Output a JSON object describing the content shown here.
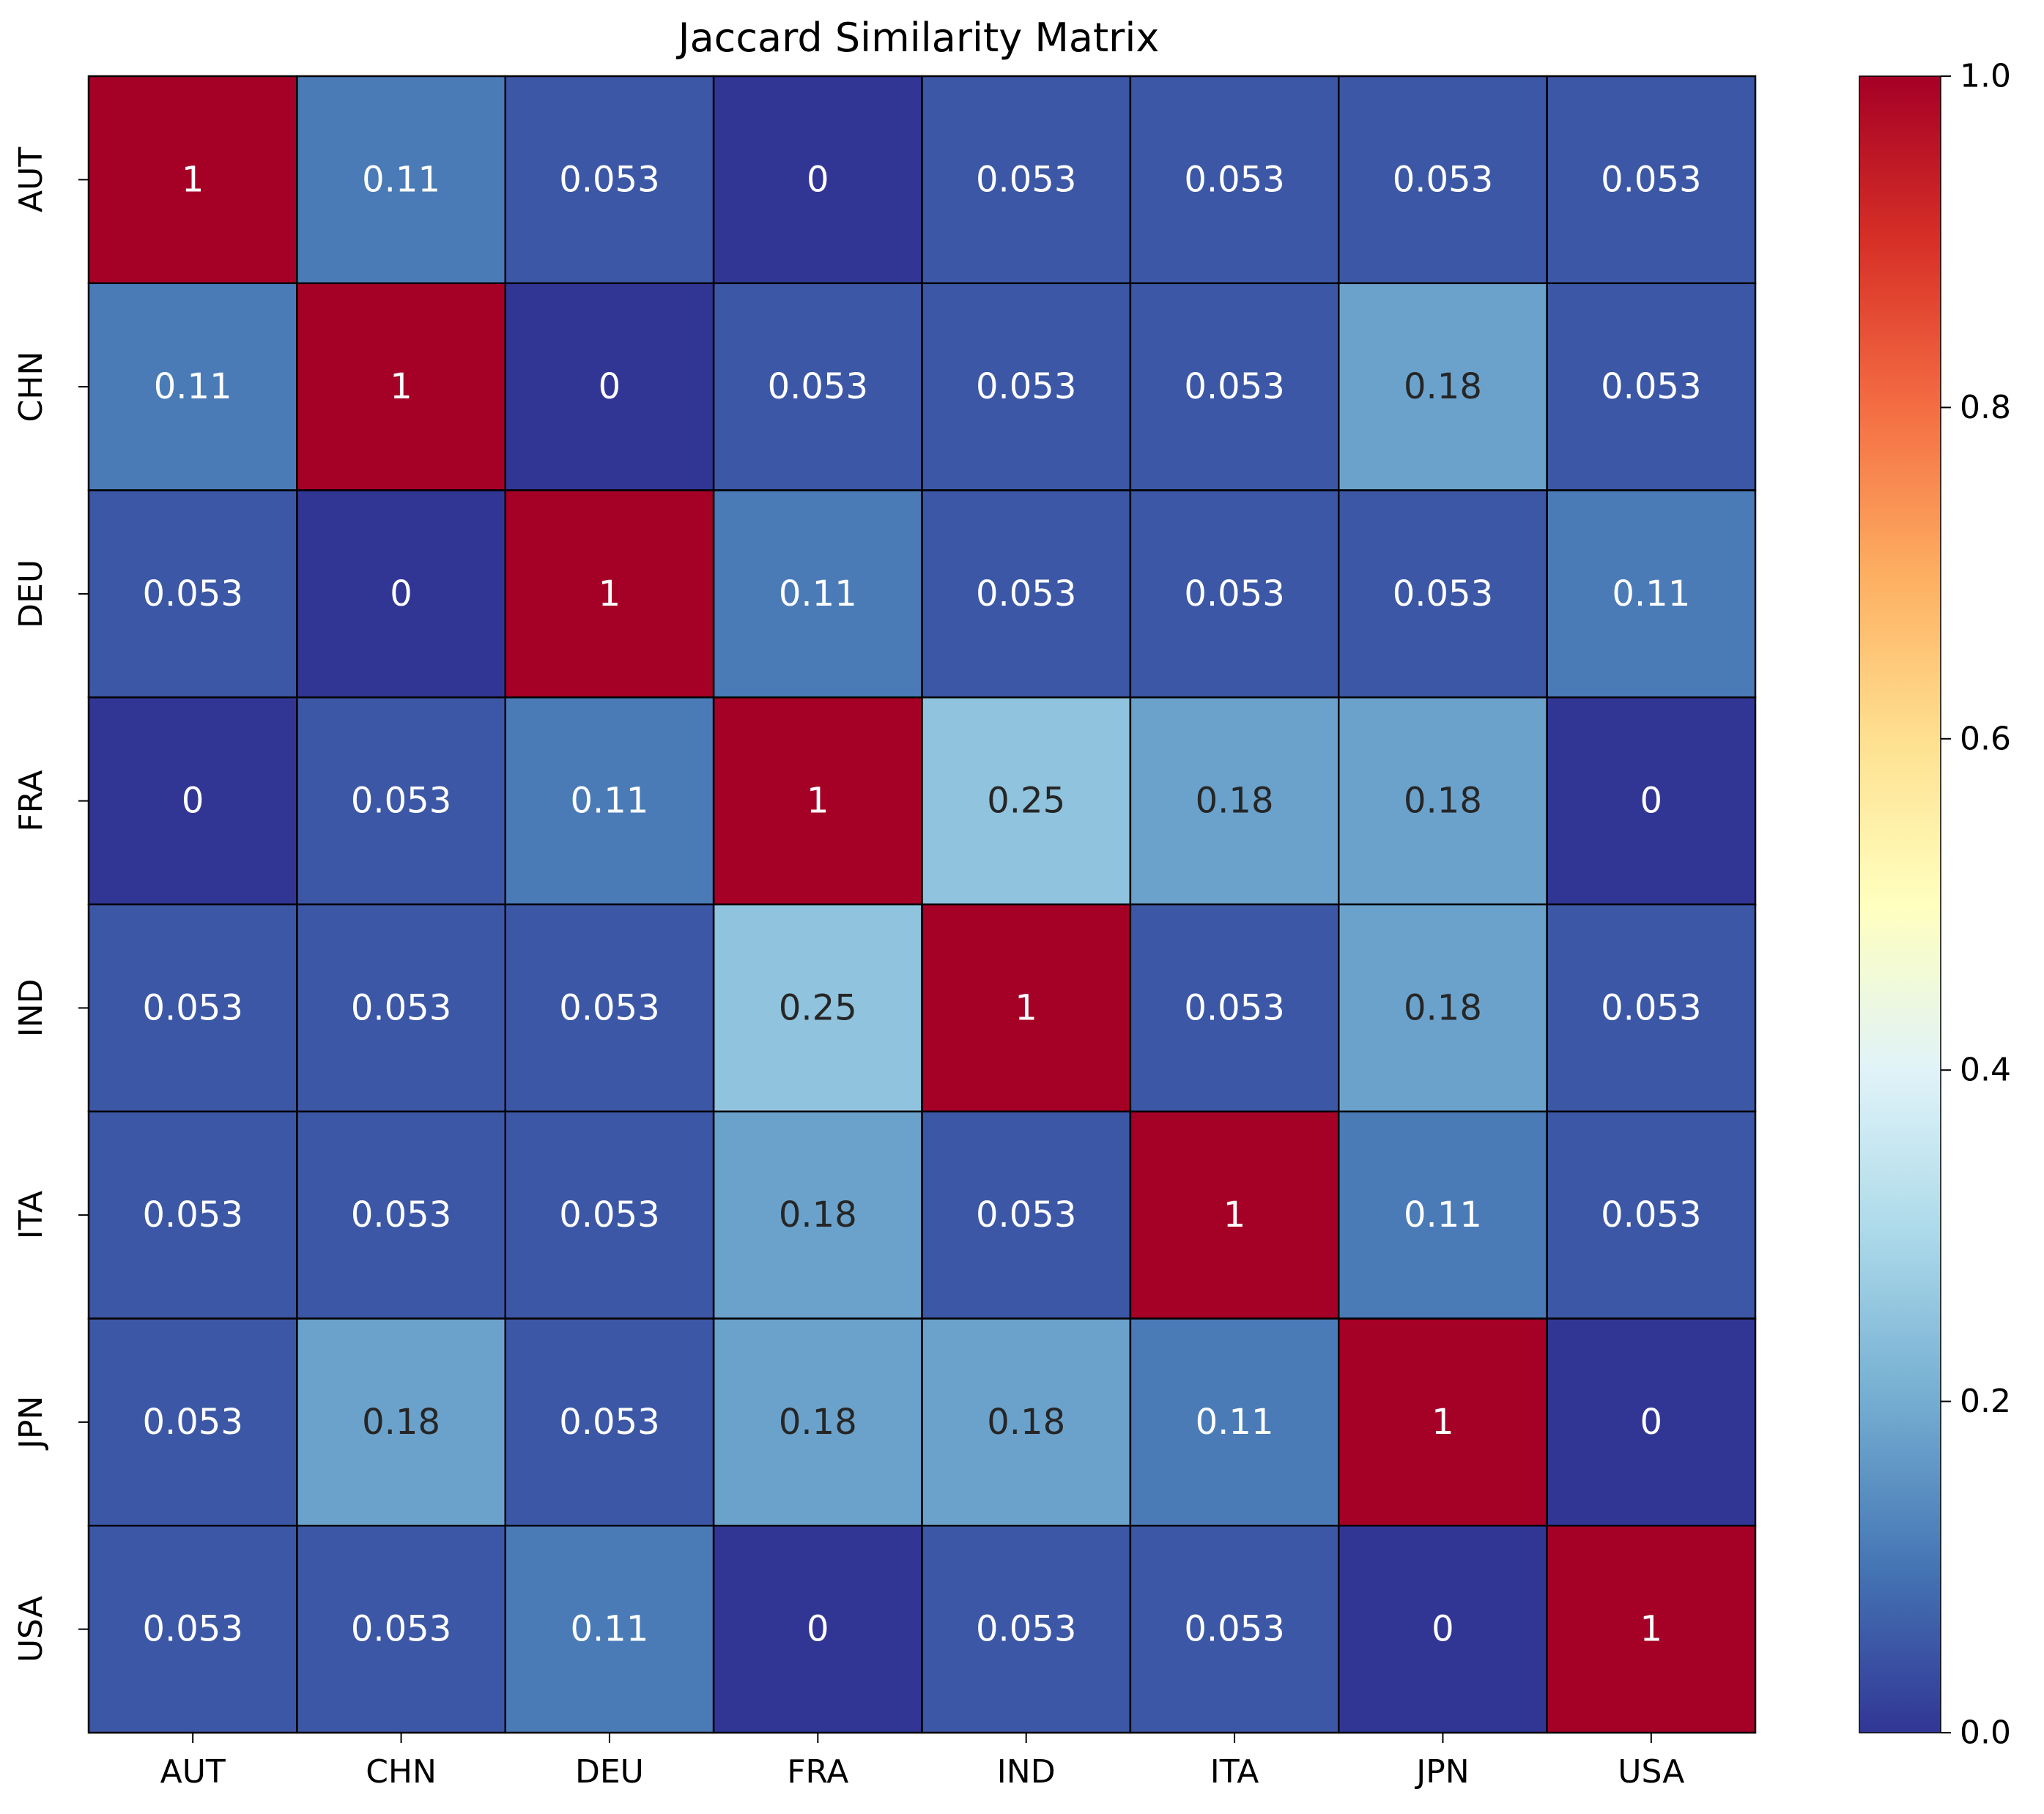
{
  "chart_data": {
    "type": "heatmap",
    "title": "Jaccard Similarity Matrix",
    "xlabel": "",
    "ylabel": "",
    "row_labels": [
      "AUT",
      "CHN",
      "DEU",
      "FRA",
      "IND",
      "ITA",
      "JPN",
      "USA"
    ],
    "col_labels": [
      "AUT",
      "CHN",
      "DEU",
      "FRA",
      "IND",
      "ITA",
      "JPN",
      "USA"
    ],
    "values": [
      [
        1,
        0.11,
        0.053,
        0,
        0.053,
        0.053,
        0.053,
        0.053
      ],
      [
        0.11,
        1,
        0,
        0.053,
        0.053,
        0.053,
        0.18,
        0.053
      ],
      [
        0.053,
        0,
        1,
        0.11,
        0.053,
        0.053,
        0.053,
        0.11
      ],
      [
        0,
        0.053,
        0.11,
        1,
        0.25,
        0.18,
        0.18,
        0
      ],
      [
        0.053,
        0.053,
        0.053,
        0.25,
        1,
        0.053,
        0.18,
        0.053
      ],
      [
        0.053,
        0.053,
        0.053,
        0.18,
        0.053,
        1,
        0.11,
        0.053
      ],
      [
        0.053,
        0.18,
        0.053,
        0.18,
        0.18,
        0.11,
        1,
        0
      ],
      [
        0.053,
        0.053,
        0.11,
        0,
        0.053,
        0.053,
        0,
        1
      ]
    ],
    "cell_labels": [
      [
        "1",
        "0.11",
        "0.053",
        "0",
        "0.053",
        "0.053",
        "0.053",
        "0.053"
      ],
      [
        "0.11",
        "1",
        "0",
        "0.053",
        "0.053",
        "0.053",
        "0.18",
        "0.053"
      ],
      [
        "0.053",
        "0",
        "1",
        "0.11",
        "0.053",
        "0.053",
        "0.053",
        "0.11"
      ],
      [
        "0",
        "0.053",
        "0.11",
        "1",
        "0.25",
        "0.18",
        "0.18",
        "0"
      ],
      [
        "0.053",
        "0.053",
        "0.053",
        "0.25",
        "1",
        "0.053",
        "0.18",
        "0.053"
      ],
      [
        "0.053",
        "0.053",
        "0.053",
        "0.18",
        "0.053",
        "1",
        "0.11",
        "0.053"
      ],
      [
        "0.053",
        "0.18",
        "0.053",
        "0.18",
        "0.18",
        "0.11",
        "1",
        "0"
      ],
      [
        "0.053",
        "0.053",
        "0.11",
        "0",
        "0.053",
        "0.053",
        "0",
        "1"
      ]
    ],
    "colormap": "RdYlBu_r",
    "vmin": 0,
    "vmax": 1,
    "colorbar_ticks": [
      "0.0",
      "0.2",
      "0.4",
      "0.6",
      "0.8",
      "1.0"
    ],
    "colorbar_tick_values": [
      0,
      0.2,
      0.4,
      0.6,
      0.8,
      1.0
    ],
    "legend": "colorbar right",
    "cell_border_color": "#000000",
    "annotation_light_color": "#ffffff",
    "annotation_dark_color": "#262626"
  }
}
